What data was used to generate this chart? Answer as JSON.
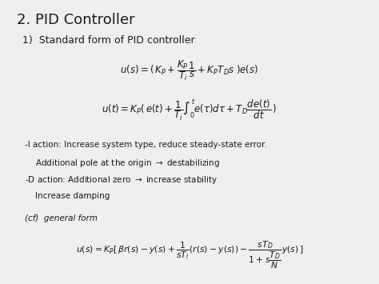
{
  "title": "2. PID Controller",
  "subtitle": "1)  Standard form of PID controller",
  "text1": "-I action: Increase system type, reduce steady-state error.",
  "text2": "    Additional pole at the origin $\\rightarrow$ destabilizing",
  "text3": "-D action: Additional zero $\\rightarrow$ increase stability",
  "text4": "    Increase damping",
  "text5": "(cf)  general form",
  "bg_color": "#f0eeee",
  "text_color": "#1a1a1a",
  "title_fontsize": 13,
  "subtitle_fontsize": 9,
  "body_fontsize": 7.5,
  "eq_fontsize": 8.5,
  "eq3_fontsize": 7.8
}
